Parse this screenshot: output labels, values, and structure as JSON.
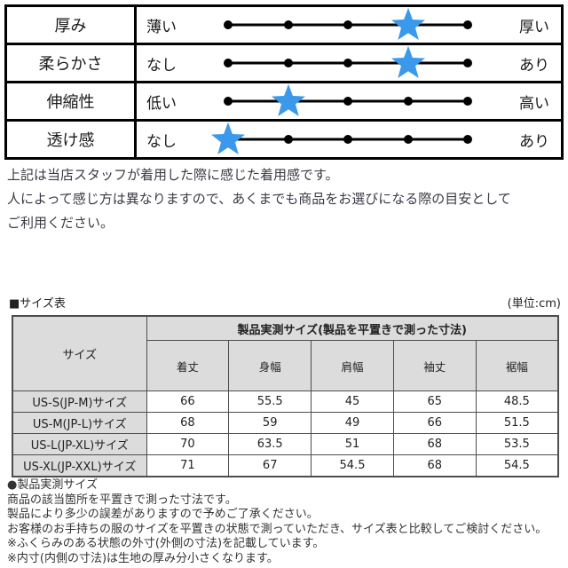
{
  "rating_table": {
    "scale_points": 5,
    "star_color": "#3B99EB",
    "dot_color": "#000000",
    "rows": [
      {
        "label": "厚み",
        "min": "薄い",
        "max": "厚い",
        "rating": 4
      },
      {
        "label": "柔らかさ",
        "min": "なし",
        "max": "あり",
        "rating": 4
      },
      {
        "label": "伸縮性",
        "min": "低い",
        "max": "高い",
        "rating": 2
      },
      {
        "label": "透け感",
        "min": "なし",
        "max": "あり",
        "rating": 1
      }
    ]
  },
  "note_paragraph": {
    "lines": [
      "上記は当店スタッフが着用した際に感じた着用感です。",
      "人によって感じ方は異なりますので、あくまでも商品をお選びになる際の目安として",
      "ご利用ください。"
    ]
  },
  "size_section": {
    "title": "■サイズ表",
    "unit": "(単位:cm)",
    "table": {
      "corner_header": "サイズ",
      "group_header": "製品実測サイズ(製品を平置きで測った寸法)",
      "columns": [
        "着丈",
        "身幅",
        "肩幅",
        "袖丈",
        "裾幅"
      ],
      "header_bg": "#dcdcdc",
      "rows": [
        {
          "size": "US-S(JP-M)サイズ",
          "values": [
            "66",
            "55.5",
            "45",
            "65",
            "48.5"
          ]
        },
        {
          "size": "US-M(JP-L)サイズ",
          "values": [
            "68",
            "59",
            "49",
            "66",
            "51.5"
          ]
        },
        {
          "size": "US-L(JP-XL)サイズ",
          "values": [
            "70",
            "63.5",
            "51",
            "68",
            "53.5"
          ]
        },
        {
          "size": "US-XL(JP-XXL)サイズ",
          "values": [
            "71",
            "67",
            "54.5",
            "68",
            "54.5"
          ]
        }
      ]
    }
  },
  "measurement_notes": {
    "bullet_title": "●製品実測サイズ",
    "lines": [
      "商品の該当箇所を平置きで測った寸法です。",
      "製品により多少の誤差がありますので予めご了承ください。",
      "お客様のお手持ちの服のサイズを平置きの状態で測っていただき、サイズ表と比較してご検討ください。"
    ],
    "asterisk_lines": [
      "※ふくらみのある状態の外寸(外側の寸法)を記載しています。",
      "※内寸(内側の寸法)は生地の厚み分小さくなります。"
    ]
  }
}
